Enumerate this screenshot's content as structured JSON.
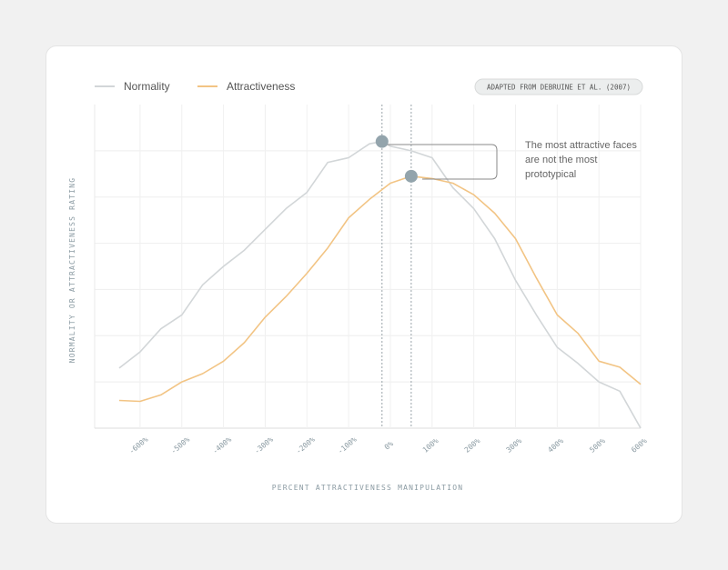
{
  "chart_data": {
    "type": "line",
    "xlabel": "PERCENT ATTRACTIVENESS MANIPULATION",
    "ylabel": "NORMALITY OR ATTRACTIVENESS RATING",
    "source": "ADAPTED FROM DEBRUINE ET AL. (2007)",
    "annotation": [
      "The most attractive faces",
      "are not the most",
      "prototypical"
    ],
    "xlim": [
      -650,
      600
    ],
    "ylim": [
      0,
      7
    ],
    "x_tick_labels": [
      "-600%",
      "-500%",
      "-400%",
      "-300%",
      "-200%",
      "-100%",
      "0%",
      "100%",
      "200%",
      "300%",
      "400%",
      "500%",
      "600%"
    ],
    "x_tick_values": [
      -600,
      -500,
      -400,
      -300,
      -200,
      -100,
      0,
      100,
      200,
      300,
      400,
      500,
      600
    ],
    "y_grid_values": [
      1,
      2,
      3,
      4,
      5,
      6
    ],
    "legend_position": "top-left",
    "series": [
      {
        "name": "Normality",
        "color": "#d2d6d8",
        "x": [
          -650,
          -600,
          -550,
          -500,
          -450,
          -400,
          -350,
          -300,
          -250,
          -200,
          -150,
          -100,
          -50,
          -20,
          0,
          50,
          100,
          150,
          200,
          250,
          300,
          350,
          400,
          450,
          500,
          550,
          600
        ],
        "y": [
          1.3,
          1.65,
          2.15,
          2.45,
          3.1,
          3.5,
          3.85,
          4.3,
          4.75,
          5.1,
          5.75,
          5.85,
          6.15,
          6.2,
          6.1,
          6.0,
          5.85,
          5.2,
          4.75,
          4.1,
          3.2,
          2.45,
          1.75,
          1.4,
          1.0,
          0.8,
          0.0
        ]
      },
      {
        "name": "Attractiveness",
        "color": "#f2c484",
        "x": [
          -650,
          -600,
          -550,
          -500,
          -450,
          -400,
          -350,
          -300,
          -250,
          -200,
          -150,
          -100,
          -50,
          0,
          50,
          100,
          150,
          200,
          250,
          300,
          350,
          400,
          450,
          500,
          550,
          600
        ],
        "y": [
          0.6,
          0.58,
          0.72,
          1.0,
          1.18,
          1.45,
          1.85,
          2.4,
          2.85,
          3.35,
          3.9,
          4.55,
          4.95,
          5.3,
          5.45,
          5.4,
          5.3,
          5.05,
          4.65,
          4.1,
          3.25,
          2.45,
          2.05,
          1.45,
          1.32,
          0.95
        ]
      }
    ],
    "reference_lines": [
      {
        "series": "Normality",
        "x": -20,
        "y": 6.2
      },
      {
        "series": "Attractiveness",
        "x": 50,
        "y": 5.45
      }
    ]
  }
}
